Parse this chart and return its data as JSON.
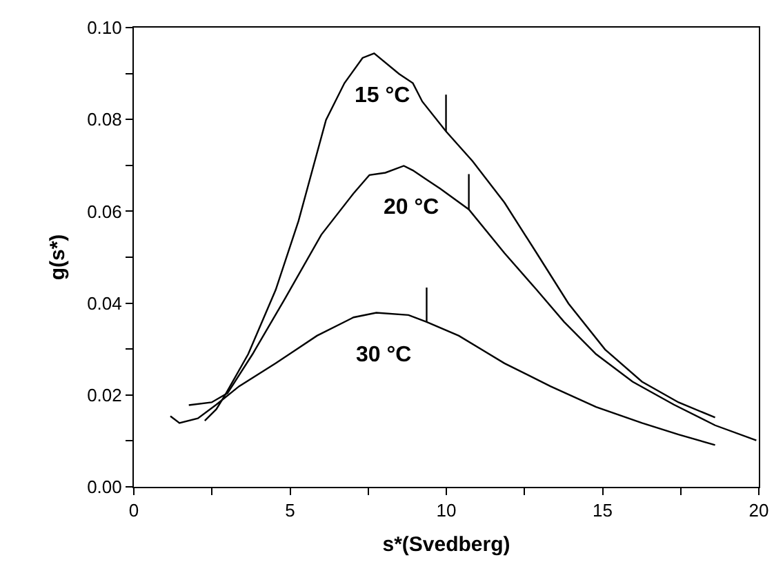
{
  "chart_data": {
    "type": "line",
    "xlabel": "s*(Svedberg)",
    "ylabel": "g(s*)",
    "xlim": [
      0,
      20
    ],
    "xticks": [
      0,
      {
        "value": 2.5,
        "label": null
      },
      5,
      {
        "value": 7.5,
        "label": null
      },
      10,
      {
        "value": 12.5,
        "label": null
      },
      15,
      {
        "value": 17.5,
        "label": null
      },
      20
    ],
    "ylim": [
      0,
      0.1
    ],
    "yticks": [
      {
        "value": 0,
        "label": "0.00"
      },
      {
        "value": 0.01,
        "label": null
      },
      {
        "value": 0.02,
        "label": "0.02"
      },
      {
        "value": 0.03,
        "label": null
      },
      {
        "value": 0.04,
        "label": "0.04"
      },
      {
        "value": 0.05,
        "label": null
      },
      {
        "value": 0.06,
        "label": "0.06"
      },
      {
        "value": 0.07,
        "label": null
      },
      {
        "value": 0.08,
        "label": "0.08"
      },
      {
        "value": 0.09,
        "label": null
      },
      {
        "value": 0.1,
        "label": "0.10"
      }
    ],
    "grid": false,
    "legend": false,
    "marker": "none",
    "line_style": "solid",
    "series": [
      {
        "name": "15 °C",
        "color": "#000000",
        "x": [
          2.27,
          2.64,
          2.93,
          3.66,
          4.54,
          5.27,
          6.15,
          6.74,
          7.32,
          7.69,
          8.49,
          8.93,
          9.23,
          9.99,
          10.84,
          11.86,
          12.89,
          13.91,
          15.08,
          16.26,
          17.43,
          18.6
        ],
        "values": [
          0.0144,
          0.0169,
          0.0201,
          0.0289,
          0.0429,
          0.0579,
          0.0799,
          0.0879,
          0.0934,
          0.0944,
          0.0899,
          0.0879,
          0.0839,
          0.0774,
          0.0709,
          0.0619,
          0.0509,
          0.0399,
          0.0299,
          0.0229,
          0.0184,
          0.0151
        ]
      },
      {
        "name": "20 °C",
        "color": "#000000",
        "x": [
          1.76,
          2.49,
          3.0,
          3.8,
          4.83,
          6.0,
          7.03,
          7.54,
          8.05,
          8.64,
          8.93,
          9.37,
          9.81,
          10.72,
          11.86,
          12.89,
          13.77,
          14.79,
          15.96,
          17.28,
          18.6,
          19.92
        ],
        "values": [
          0.0178,
          0.0184,
          0.0204,
          0.0289,
          0.0409,
          0.0549,
          0.0639,
          0.0679,
          0.0684,
          0.0699,
          0.0689,
          0.0669,
          0.0649,
          0.0604,
          0.0509,
          0.0429,
          0.0359,
          0.0289,
          0.0229,
          0.0179,
          0.0134,
          0.0101
        ]
      },
      {
        "name": "30 °C",
        "color": "#000000",
        "x": [
          1.17,
          1.46,
          2.05,
          2.64,
          3.37,
          4.54,
          5.86,
          7.03,
          7.76,
          8.79,
          9.37,
          10.4,
          11.86,
          13.33,
          14.79,
          16.26,
          17.43,
          18.6
        ],
        "values": [
          0.0154,
          0.0139,
          0.0149,
          0.0179,
          0.0219,
          0.0269,
          0.0329,
          0.0369,
          0.0379,
          0.0374,
          0.0359,
          0.0329,
          0.0269,
          0.0219,
          0.0174,
          0.0139,
          0.0114,
          0.0091
        ]
      },
      {
        "color": "#000000",
        "x": [
          9.99,
          9.99
        ],
        "values": [
          0.0854,
          0.0774
        ]
      },
      {
        "color": "#000000",
        "x": [
          10.72,
          10.72
        ],
        "values": [
          0.0681,
          0.0604
        ]
      },
      {
        "color": "#000000",
        "x": [
          9.37,
          9.37
        ],
        "values": [
          0.0434,
          0.0359
        ]
      }
    ]
  }
}
